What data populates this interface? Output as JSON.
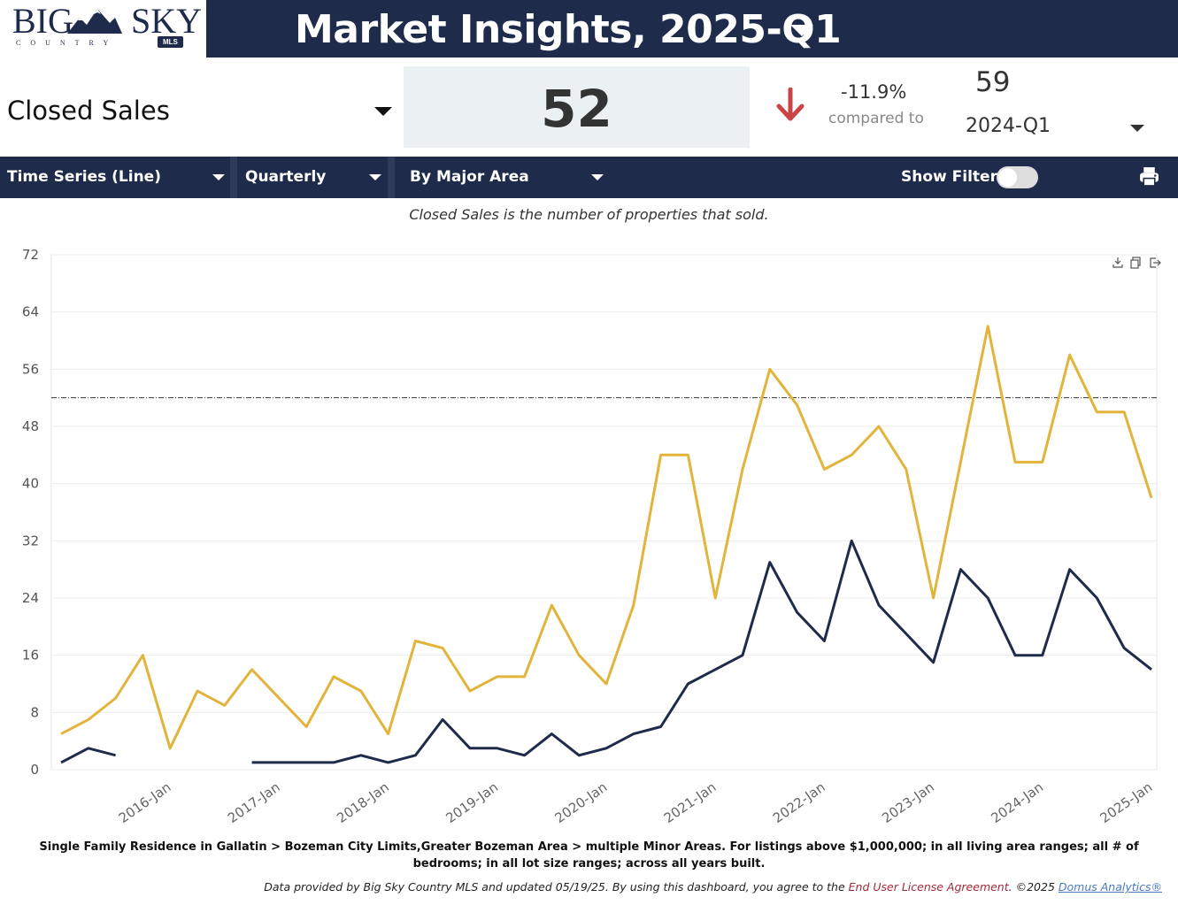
{
  "logo": {
    "big": "BIG",
    "sky": "SKY",
    "country": "COUNTRY",
    "mls": "MLS"
  },
  "header": {
    "title": "Market Insights, 2025-Q1"
  },
  "kpi": {
    "metric": "Closed Sales",
    "value": "52",
    "change_pct": "-11.9%",
    "compared_label": "compared to",
    "prior_value": "59",
    "prior_period": "2024-Q1"
  },
  "toolbar": {
    "chart_type": "Time Series (Line)",
    "interval": "Quarterly",
    "grouping": "By Major Area",
    "show_filters_label": "Show Filters:"
  },
  "description": "Closed Sales is the number of properties that sold.",
  "chart_data": {
    "type": "line",
    "x": [
      "2015-Q1",
      "2015-Q2",
      "2015-Q3",
      "2015-Q4",
      "2016-Q1",
      "2016-Q2",
      "2016-Q3",
      "2016-Q4",
      "2017-Q1",
      "2017-Q2",
      "2017-Q3",
      "2017-Q4",
      "2018-Q1",
      "2018-Q2",
      "2018-Q3",
      "2018-Q4",
      "2019-Q1",
      "2019-Q2",
      "2019-Q3",
      "2019-Q4",
      "2020-Q1",
      "2020-Q2",
      "2020-Q3",
      "2020-Q4",
      "2021-Q1",
      "2021-Q2",
      "2021-Q3",
      "2021-Q4",
      "2022-Q1",
      "2022-Q2",
      "2022-Q3",
      "2022-Q4",
      "2023-Q1",
      "2023-Q2",
      "2023-Q3",
      "2023-Q4",
      "2024-Q1",
      "2024-Q2",
      "2024-Q3",
      "2024-Q4",
      "2025-Q1"
    ],
    "x_tick_labels": [
      "2016-Jan",
      "2017-Jan",
      "2018-Jan",
      "2019-Jan",
      "2020-Jan",
      "2021-Jan",
      "2022-Jan",
      "2023-Jan",
      "2024-Jan",
      "2025-Jan"
    ],
    "ylim": [
      0,
      72
    ],
    "y_ticks": [
      0,
      8,
      16,
      24,
      32,
      40,
      48,
      56,
      64,
      72
    ],
    "reference_line": 52,
    "grid": true,
    "series": [
      {
        "color": "#e2b43c",
        "values": [
          5,
          7,
          10,
          16,
          3,
          11,
          9,
          14,
          10,
          6,
          13,
          11,
          5,
          18,
          17,
          11,
          13,
          13,
          23,
          16,
          12,
          23,
          44,
          44,
          24,
          42,
          56,
          51,
          42,
          44,
          48,
          42,
          24,
          43,
          62,
          43,
          43,
          58,
          50,
          50,
          38
        ]
      },
      {
        "color": "#1e2b4a",
        "values": [
          1,
          3,
          2,
          null,
          null,
          null,
          null,
          1,
          1,
          1,
          1,
          2,
          1,
          2,
          7,
          3,
          3,
          2,
          5,
          2,
          3,
          5,
          6,
          12,
          14,
          16,
          29,
          22,
          18,
          32,
          23,
          19,
          15,
          28,
          24,
          16,
          16,
          28,
          24,
          17,
          14
        ]
      }
    ]
  },
  "footnote": "Single Family Residence in Gallatin > Bozeman City Limits,Greater Bozeman Area > multiple Minor Areas. For listings above $1,000,000; in all living area ranges; all # of bedrooms; in all lot size ranges; across all years built.",
  "credits": {
    "prefix": "Data provided by Big Sky Country MLS and updated 05/19/25.  By using this dashboard, you agree to the ",
    "eula": "End User License Agreement",
    "middle": ".  ©2025 ",
    "domus": "Domus Analytics®"
  },
  "icons": [
    "mountain-logo-icon",
    "caret-down-icon",
    "down-arrow-icon",
    "toggle-switch-icon",
    "printer-icon",
    "download-icon",
    "copy-icon",
    "export-icon"
  ]
}
